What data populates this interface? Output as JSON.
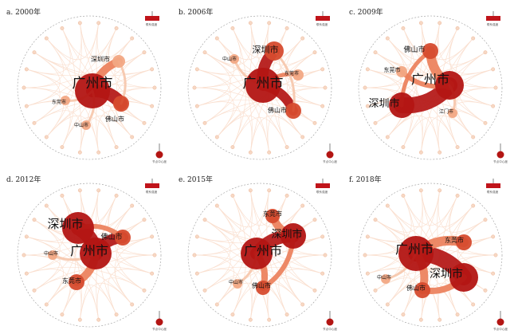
{
  "colors": {
    "node_dark": "#b31513",
    "node_mid": "#d64b2e",
    "node_light": "#f2a884",
    "edge_strong": "#b31513",
    "edge_mid": "#ec7f5a",
    "edge_light": "#f6c7ab",
    "circle_guide": "#9a9a9a",
    "legend_bar": "#c0141a"
  },
  "legend": {
    "bar_label": "联系强度",
    "node_label": "节点中心度"
  },
  "panels": [
    {
      "label": "a. 2000年",
      "labels": [
        {
          "text": "广州市",
          "role": "major"
        },
        {
          "text": "深圳市",
          "role": "minor"
        },
        {
          "text": "佛山市",
          "role": "minor"
        },
        {
          "text": "东莞市",
          "role": "small"
        },
        {
          "text": "中山市",
          "role": "small"
        }
      ]
    },
    {
      "label": "b. 2006年",
      "labels": [
        {
          "text": "广州市",
          "role": "major"
        },
        {
          "text": "深圳市",
          "role": "minor"
        },
        {
          "text": "佛山市",
          "role": "minor"
        },
        {
          "text": "东莞市",
          "role": "small"
        },
        {
          "text": "中山市",
          "role": "small"
        }
      ]
    },
    {
      "label": "c. 2009年",
      "labels": [
        {
          "text": "广州市",
          "role": "major"
        },
        {
          "text": "深圳市",
          "role": "major"
        },
        {
          "text": "佛山市",
          "role": "minor"
        },
        {
          "text": "东莞市",
          "role": "small"
        },
        {
          "text": "江门市",
          "role": "small"
        }
      ]
    },
    {
      "label": "d. 2012年",
      "labels": [
        {
          "text": "深圳市",
          "role": "major"
        },
        {
          "text": "广州市",
          "role": "major"
        },
        {
          "text": "佛山市",
          "role": "minor"
        },
        {
          "text": "东莞市",
          "role": "small"
        },
        {
          "text": "中山市",
          "role": "small"
        }
      ]
    },
    {
      "label": "e. 2015年",
      "labels": [
        {
          "text": "广州市",
          "role": "major"
        },
        {
          "text": "深圳市",
          "role": "major"
        },
        {
          "text": "东莞市",
          "role": "minor"
        },
        {
          "text": "佛山市",
          "role": "minor"
        },
        {
          "text": "中山市",
          "role": "small"
        }
      ]
    },
    {
      "label": "f. 2018年",
      "labels": [
        {
          "text": "广州市",
          "role": "major"
        },
        {
          "text": "深圳市",
          "role": "major"
        },
        {
          "text": "东莞市",
          "role": "minor"
        },
        {
          "text": "佛山市",
          "role": "minor"
        },
        {
          "text": "中山市",
          "role": "small"
        }
      ]
    }
  ]
}
